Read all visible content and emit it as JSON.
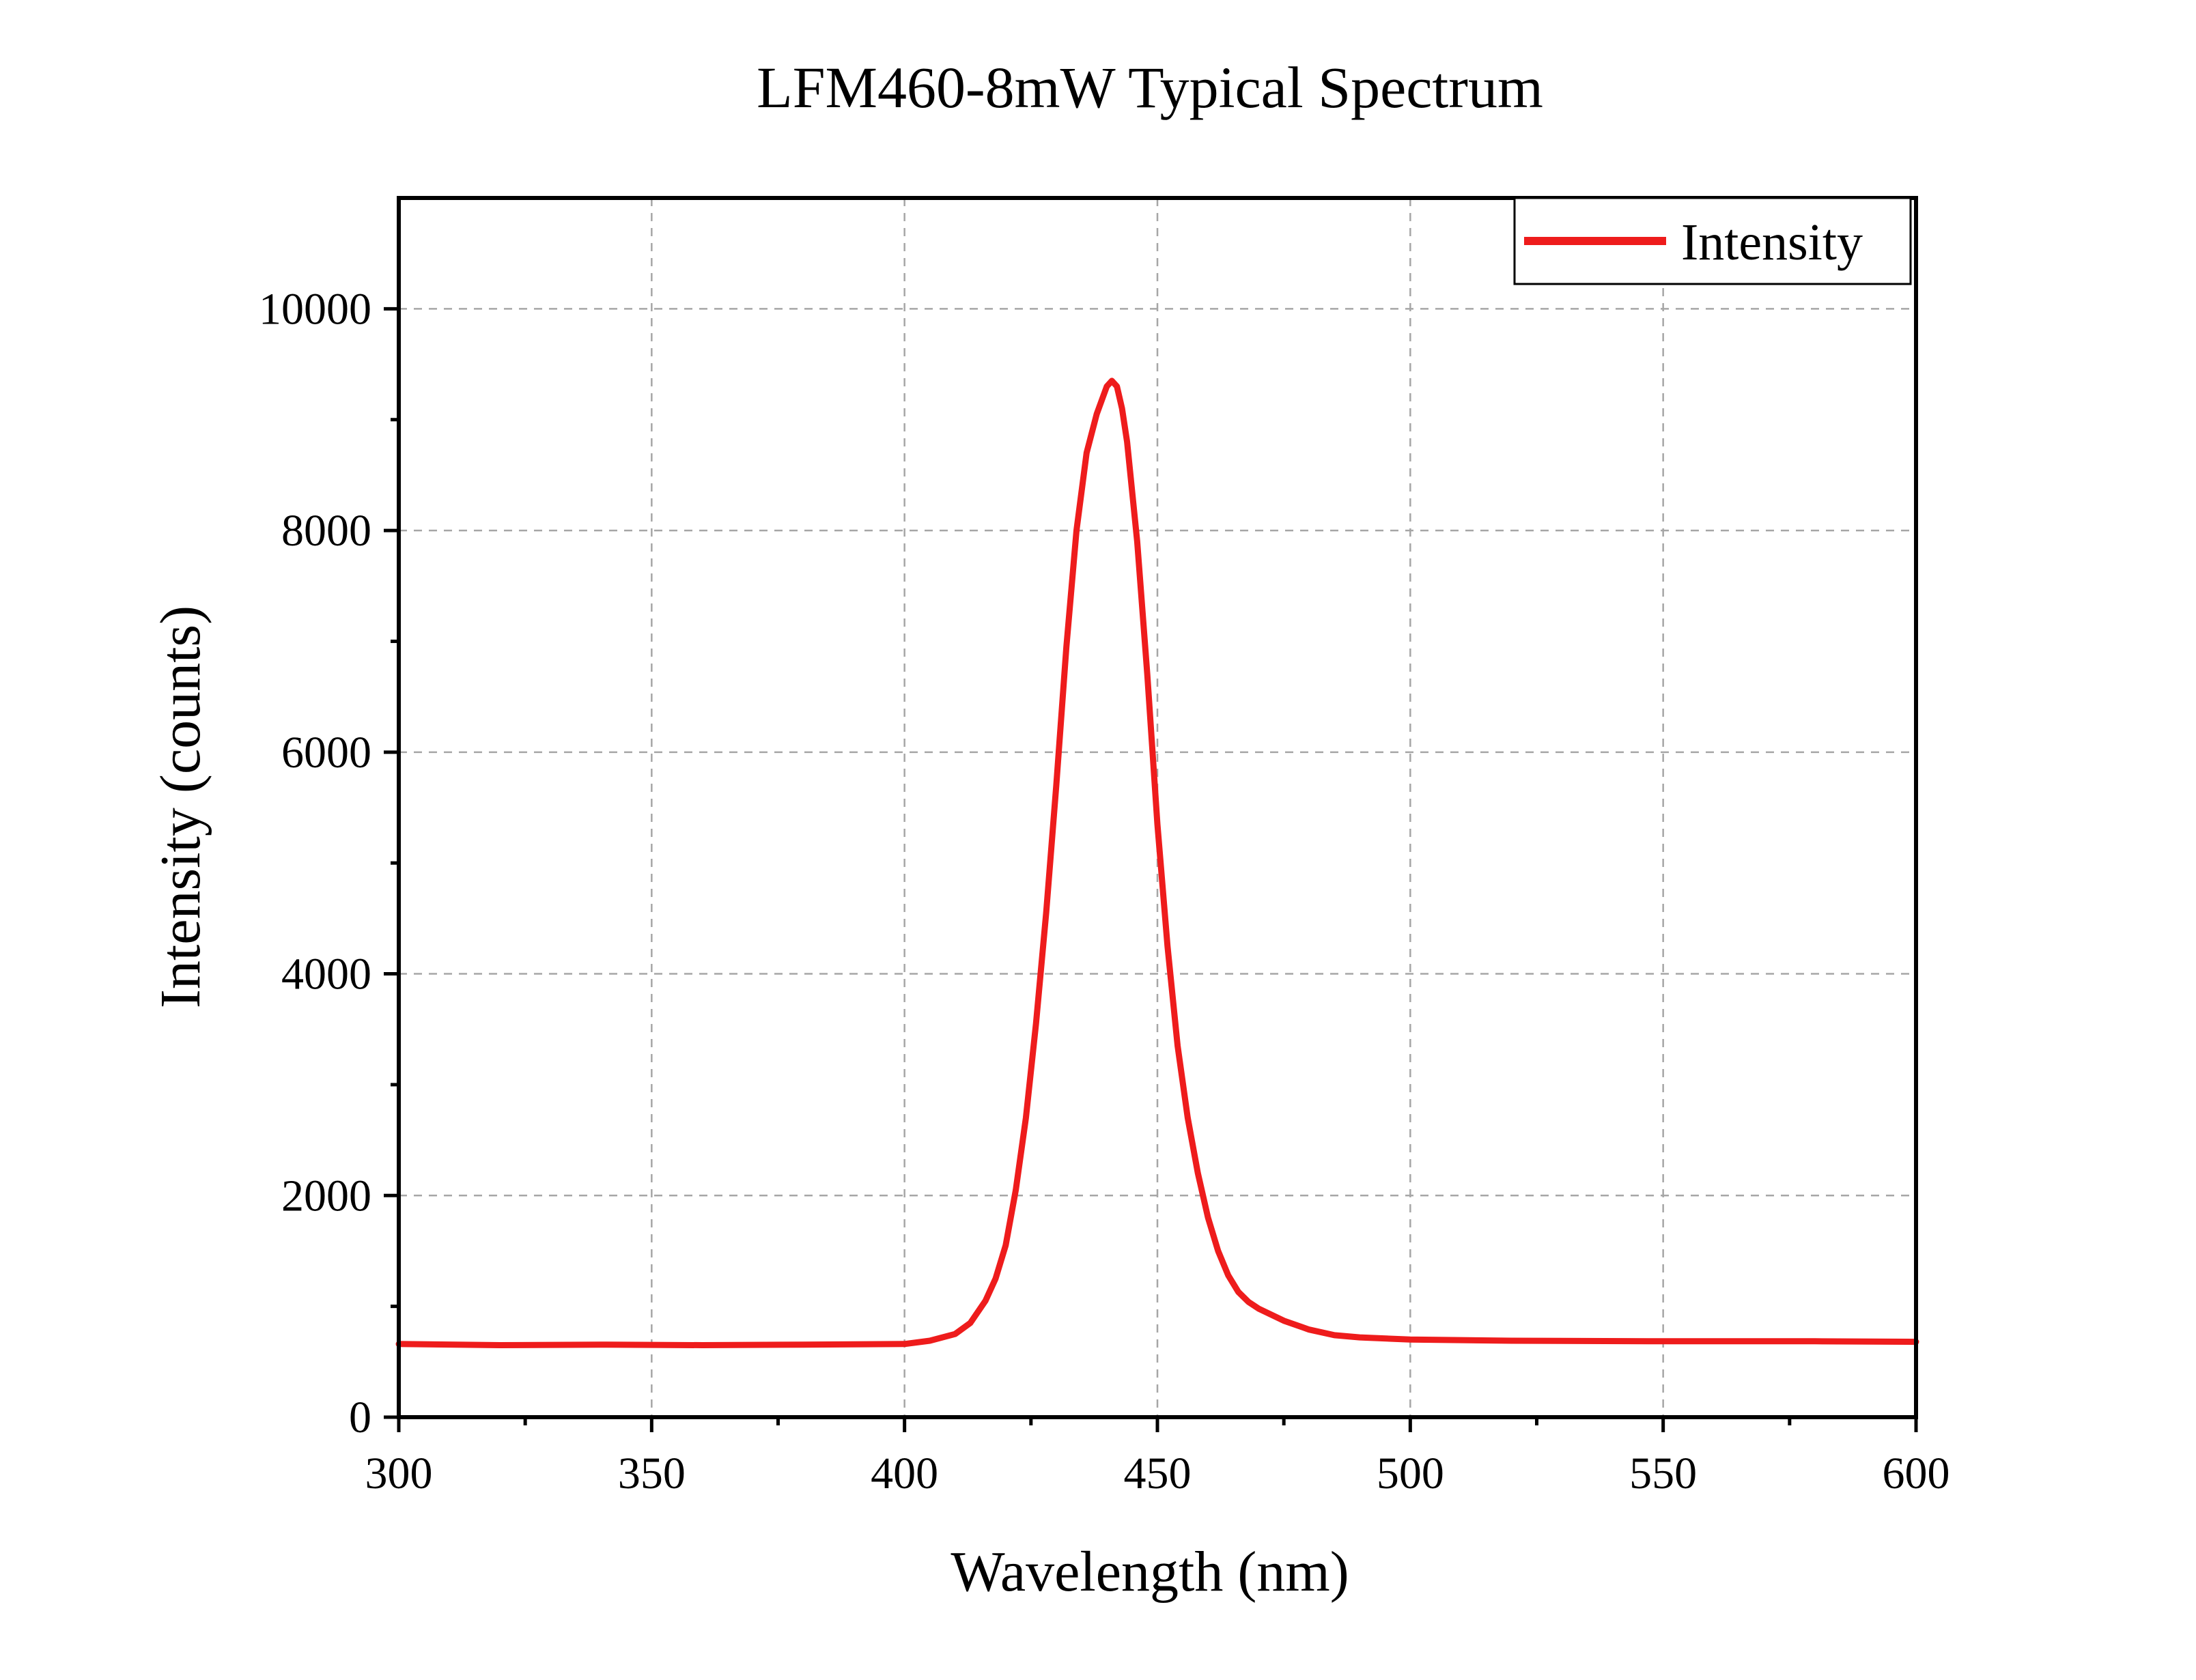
{
  "chart_data": {
    "type": "line",
    "title": "LFM460-8mW Typical Spectrum",
    "xlabel": "Wavelength (nm)",
    "ylabel": "Intensity (counts)",
    "xlim": [
      300,
      600
    ],
    "ylim": [
      0,
      11000
    ],
    "x_ticks": [
      300,
      350,
      400,
      450,
      500,
      550,
      600
    ],
    "y_ticks": [
      0,
      2000,
      4000,
      6000,
      8000,
      10000
    ],
    "x_tick_labels": [
      "300",
      "350",
      "400",
      "450",
      "500",
      "550",
      "600"
    ],
    "y_tick_labels": [
      "0",
      "2000",
      "4000",
      "6000",
      "8000",
      "10000"
    ],
    "grid": true,
    "legend": {
      "position": "top-right",
      "entries": [
        "Intensity"
      ]
    },
    "series": [
      {
        "name": "Intensity",
        "color": "#ee1c1c",
        "x": [
          300,
          320,
          340,
          360,
          380,
          400,
          405,
          410,
          413,
          416,
          418,
          420,
          422,
          424,
          426,
          428,
          430,
          432,
          434,
          436,
          438,
          440,
          441,
          442,
          443,
          444,
          446,
          448,
          450,
          452,
          454,
          456,
          458,
          460,
          462,
          464,
          466,
          468,
          470,
          475,
          480,
          485,
          490,
          500,
          520,
          550,
          580,
          600
        ],
        "y": [
          660,
          650,
          655,
          650,
          655,
          660,
          690,
          750,
          850,
          1050,
          1250,
          1550,
          2050,
          2700,
          3550,
          4550,
          5700,
          6950,
          8000,
          8700,
          9050,
          9300,
          9350,
          9300,
          9100,
          8800,
          7900,
          6700,
          5350,
          4250,
          3350,
          2700,
          2200,
          1800,
          1500,
          1280,
          1130,
          1040,
          980,
          870,
          790,
          740,
          720,
          700,
          690,
          685,
          685,
          680
        ]
      }
    ]
  }
}
